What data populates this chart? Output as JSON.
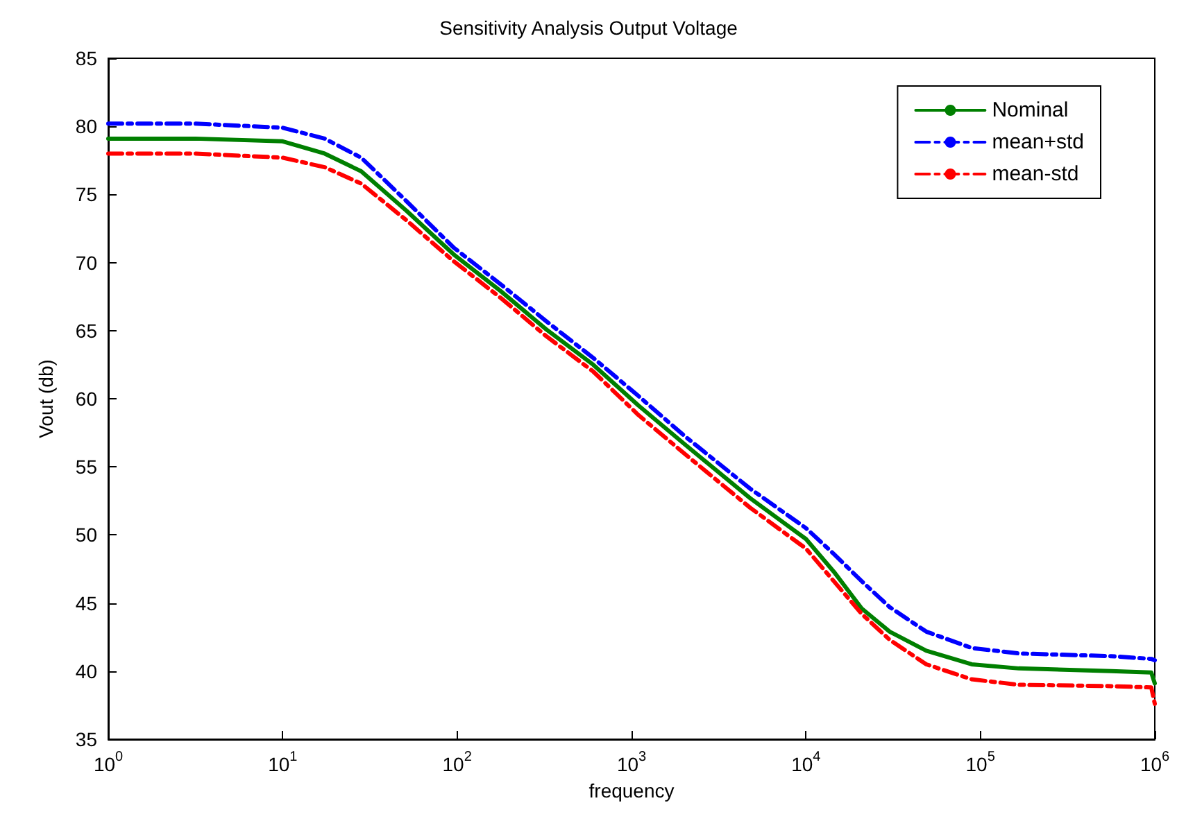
{
  "chart_data": {
    "type": "line",
    "title": "Sensitivity Analysis Output Voltage",
    "xlabel": "frequency",
    "ylabel": "Vout (db)",
    "x": [
      1,
      3.16,
      10,
      17.4,
      28.2,
      51.3,
      95.5,
      178,
      324,
      603,
      1096,
      2042,
      4786,
      10000,
      14454,
      20893,
      30200,
      48978,
      89125,
      165959,
      562341,
      954993,
      1000000
    ],
    "series": [
      {
        "name": "Nominal",
        "color": "#007f00",
        "line_style": "solid",
        "values": [
          79.1,
          79.1,
          78.9,
          78.0,
          76.7,
          73.8,
          70.6,
          67.9,
          65.1,
          62.5,
          59.5,
          56.6,
          52.7,
          49.7,
          47.3,
          44.6,
          42.9,
          41.5,
          40.5,
          40.2,
          40.0,
          39.9,
          39.1
        ]
      },
      {
        "name": "mean+std",
        "color": "#0000ff",
        "line_style": "dashed",
        "values": [
          80.2,
          80.2,
          79.9,
          79.1,
          77.7,
          74.5,
          71.1,
          68.4,
          65.7,
          63.0,
          60.2,
          57.2,
          53.4,
          50.5,
          48.6,
          46.6,
          44.7,
          42.9,
          41.7,
          41.3,
          41.1,
          40.9,
          40.8
        ]
      },
      {
        "name": "mean-std",
        "color": "#ff0000",
        "line_style": "dashed",
        "values": [
          78.0,
          78.0,
          77.7,
          77.0,
          75.8,
          73.1,
          70.1,
          67.4,
          64.6,
          62.0,
          58.8,
          55.9,
          52.0,
          49.0,
          46.6,
          44.2,
          42.3,
          40.5,
          39.4,
          39.0,
          38.9,
          38.8,
          37.6
        ]
      }
    ],
    "log": "x",
    "xlim": [
      1,
      1000000
    ],
    "xticks": [
      {
        "value": 1,
        "label": "10$^{0}$"
      },
      {
        "value": 10,
        "label": "10$^{1}$"
      },
      {
        "value": 100,
        "label": "10$^{2}$"
      },
      {
        "value": 1000,
        "label": "10$^{3}$"
      },
      {
        "value": 10000,
        "label": "10$^{4}$"
      },
      {
        "value": 100000,
        "label": "10$^{5}$"
      },
      {
        "value": 1000000,
        "label": "10$^{6}$"
      }
    ],
    "ylim": [
      35,
      85
    ],
    "yticks": [
      35,
      40,
      45,
      50,
      55,
      60,
      65,
      70,
      75,
      80,
      85
    ],
    "grid": false,
    "legend": "top right",
    "marker": "none"
  }
}
